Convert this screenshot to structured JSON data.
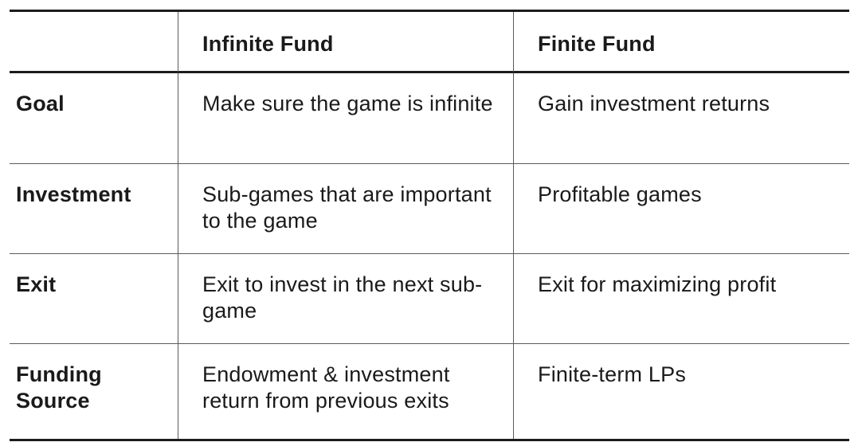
{
  "table": {
    "headers": [
      "",
      "Infinite Fund",
      "Finite Fund"
    ],
    "rows": [
      {
        "label": "Goal",
        "infinite": "Make sure the game is infinite",
        "finite": "Gain investment returns"
      },
      {
        "label": "Investment",
        "infinite": "Sub-games that are important to the game",
        "finite": "Profitable games"
      },
      {
        "label": "Exit",
        "infinite": "Exit to invest in the next sub-game",
        "finite": "Exit for maximizing profit"
      },
      {
        "label": "Funding Source",
        "infinite": "Endowment & investment return from previous exits",
        "finite": "Finite-term LPs"
      }
    ]
  }
}
